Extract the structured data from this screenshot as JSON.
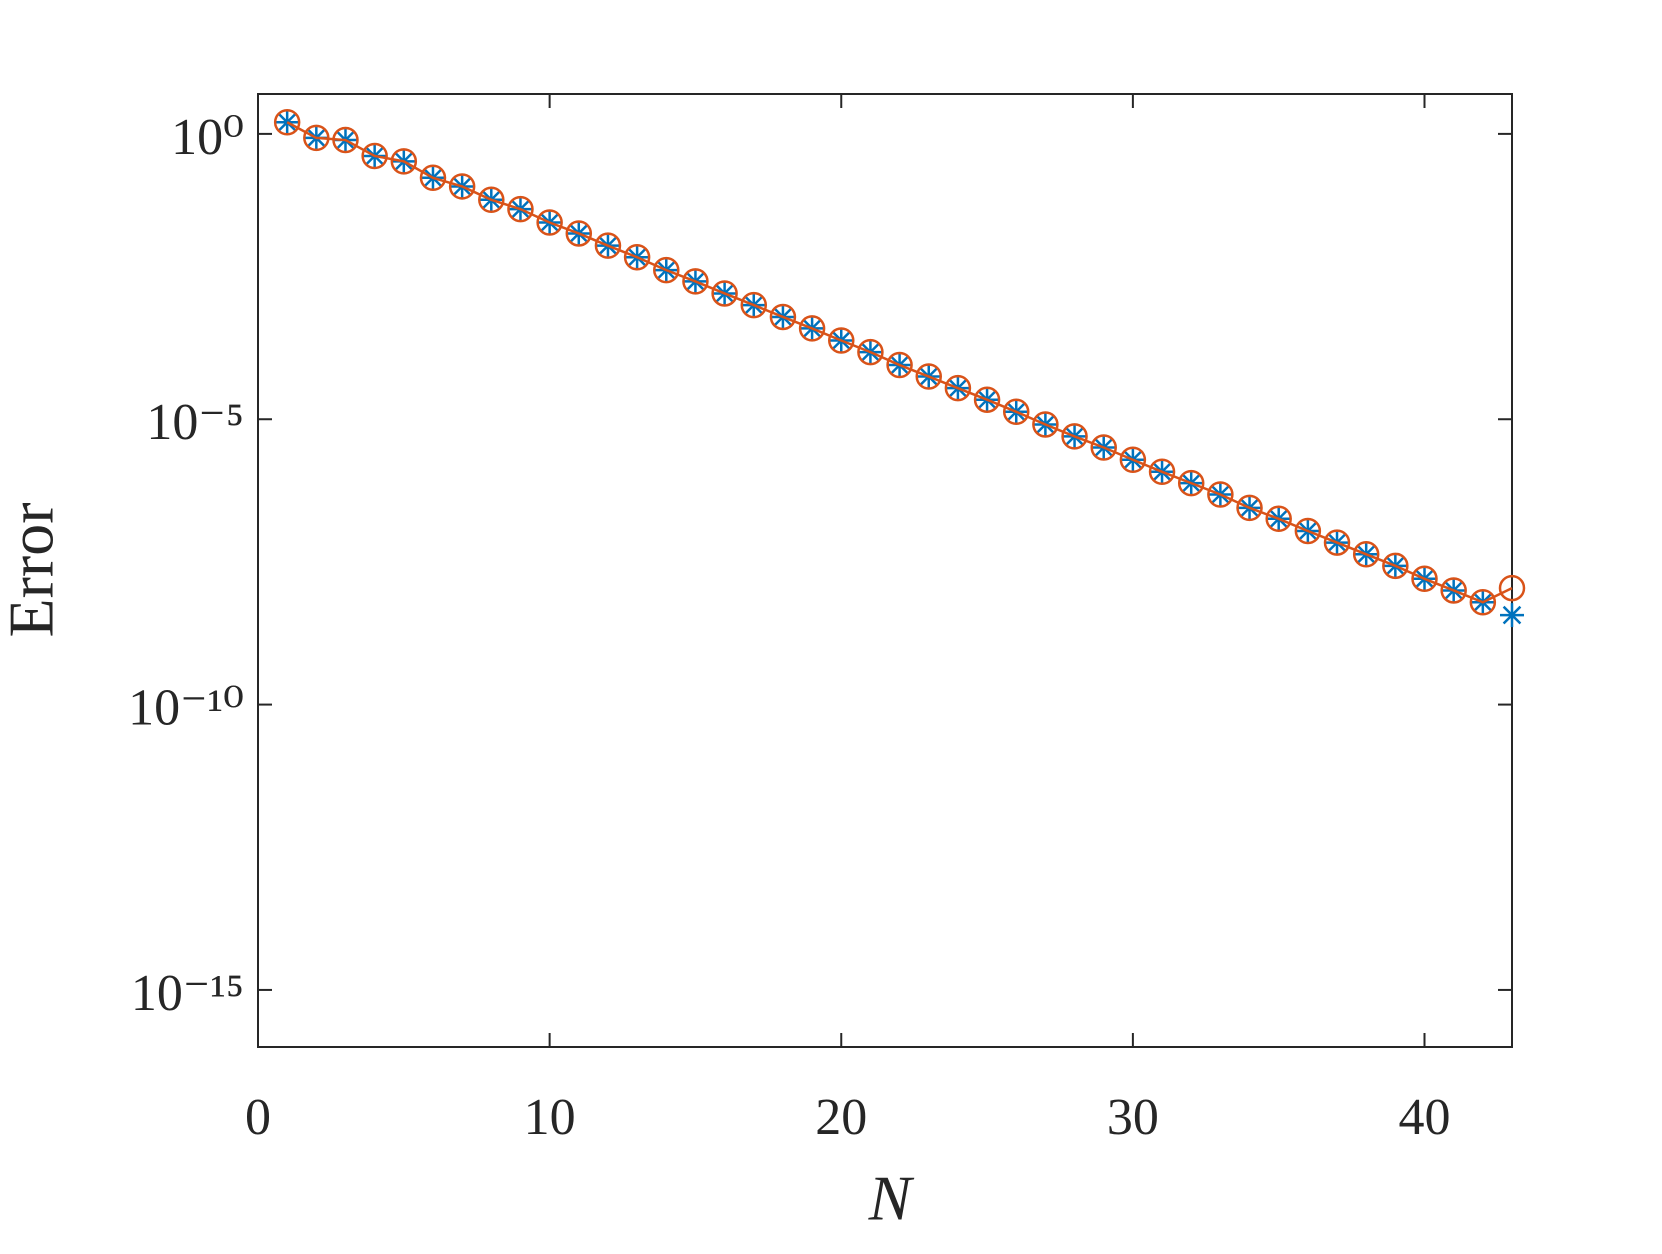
{
  "chart_data": {
    "type": "line",
    "xlabel": "N",
    "ylabel": "Error",
    "x": [
      1,
      2,
      3,
      4,
      5,
      6,
      7,
      8,
      9,
      10,
      11,
      12,
      13,
      14,
      15,
      16,
      17,
      18,
      19,
      20,
      21,
      22,
      23,
      24,
      25,
      26,
      27,
      28,
      29,
      30,
      31,
      32,
      33,
      34,
      35,
      36,
      37,
      38,
      39,
      40,
      41,
      42,
      43
    ],
    "series": [
      {
        "color": "#0072BD",
        "marker": "asterisk",
        "line": false,
        "values": [
          1.6,
          0.85,
          0.78,
          0.41,
          0.33,
          0.17,
          0.12,
          0.07,
          0.048,
          0.028,
          0.018,
          0.011,
          0.0069,
          0.0041,
          0.0026,
          0.0016,
          0.001,
          0.00062,
          0.00039,
          0.00024,
          0.00015,
          8.9e-05,
          5.6e-05,
          3.5e-05,
          2.2e-05,
          1.35e-05,
          8.1e-06,
          5e-06,
          3.2e-06,
          1.95e-06,
          1.2e-06,
          7.6e-07,
          4.8e-07,
          2.8e-07,
          1.8e-07,
          1.1e-07,
          6.9e-08,
          4.3e-08,
          2.7e-08,
          1.6e-08,
          1e-08,
          6.2e-09,
          3.7e-09
        ]
      },
      {
        "color": "#D95319",
        "marker": "circle",
        "line": true,
        "values": [
          1.6,
          0.85,
          0.78,
          0.41,
          0.33,
          0.17,
          0.12,
          0.07,
          0.048,
          0.028,
          0.018,
          0.011,
          0.0069,
          0.0041,
          0.0026,
          0.0016,
          0.001,
          0.00062,
          0.00039,
          0.00024,
          0.00015,
          8.9e-05,
          5.6e-05,
          3.5e-05,
          2.2e-05,
          1.35e-05,
          8.1e-06,
          5e-06,
          3.2e-06,
          1.95e-06,
          1.2e-06,
          7.6e-07,
          4.8e-07,
          2.8e-07,
          1.8e-07,
          1.1e-07,
          6.9e-08,
          4.3e-08,
          2.7e-08,
          1.6e-08,
          1e-08,
          6.2e-09,
          1.1e-08
        ]
      }
    ],
    "xlim": [
      0,
      43
    ],
    "xticks": [
      0,
      10,
      20,
      30,
      40
    ],
    "ylim": [
      1e-16,
      5
    ],
    "ylog": true,
    "yticks": [
      {
        "value": 1,
        "label": "10⁰"
      },
      {
        "value": 1e-05,
        "label": "10⁻⁵"
      },
      {
        "value": 1e-10,
        "label": "10⁻¹⁰"
      },
      {
        "value": 1e-15,
        "label": "10⁻¹⁵"
      }
    ],
    "grid": false
  }
}
